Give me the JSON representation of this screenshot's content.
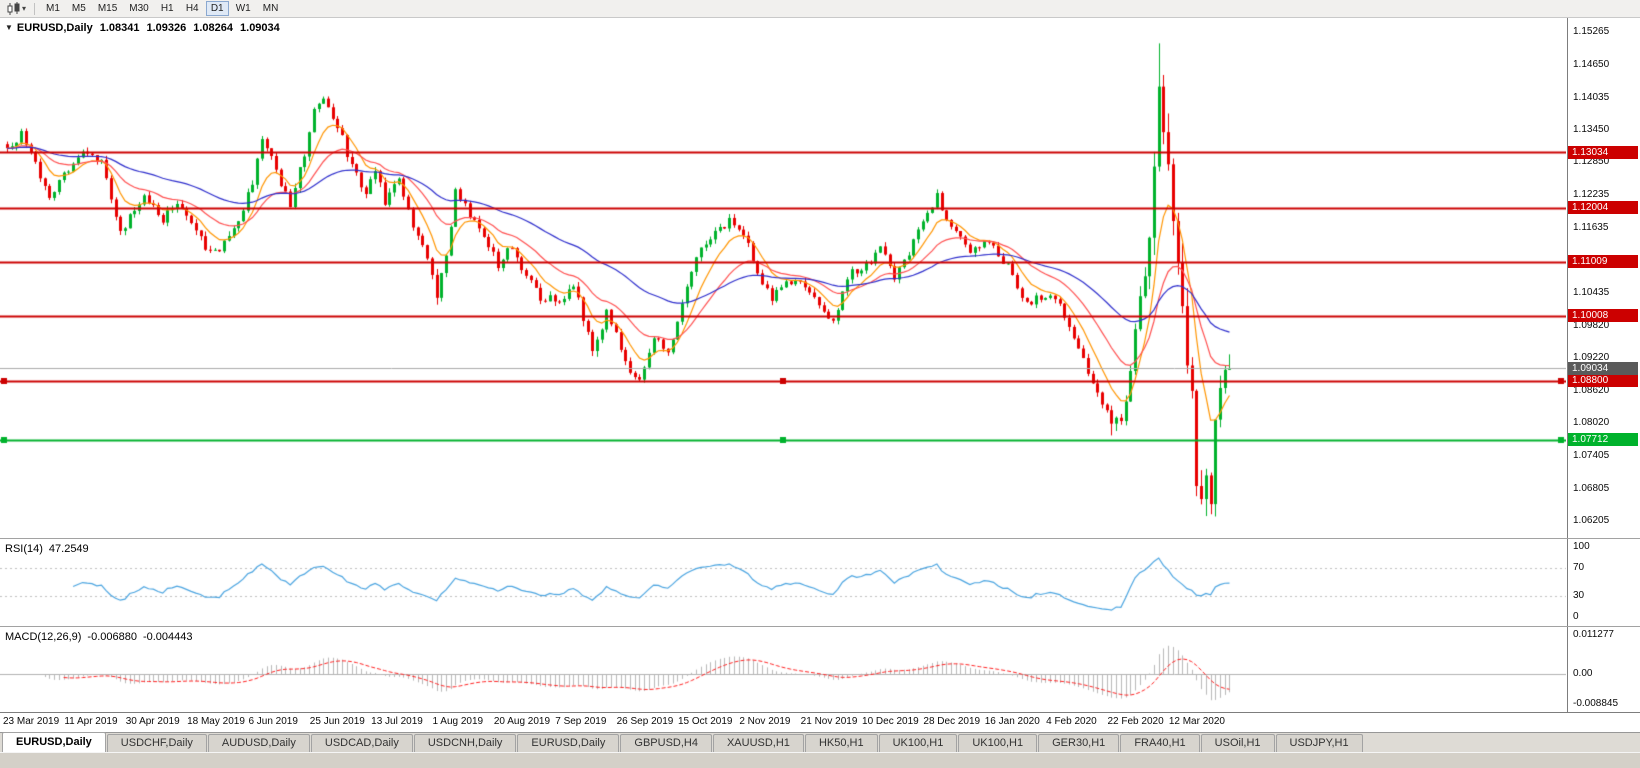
{
  "toolbar": {
    "timeframes": [
      "M1",
      "M5",
      "M15",
      "M30",
      "H1",
      "H4",
      "D1",
      "W1",
      "MN"
    ],
    "active_timeframe": "D1"
  },
  "icons": {
    "chart_type": "candlestick-chart",
    "dropdown": "▾",
    "collapse": "▼"
  },
  "chart": {
    "title": "EURUSD,Daily",
    "ohlc": {
      "open": "1.08341",
      "high": "1.09326",
      "low": "1.08264",
      "close": "1.09034"
    }
  },
  "indicators": {
    "rsi": {
      "name": "RSI(14)",
      "value": "47.2549"
    },
    "macd": {
      "name": "MACD(12,26,9)",
      "value_macd": "-0.006880",
      "value_signal": "-0.004443"
    }
  },
  "tabs": [
    {
      "label": "EURUSD,Daily",
      "active": true
    },
    {
      "label": "USDCHF,Daily",
      "active": false
    },
    {
      "label": "AUDUSD,Daily",
      "active": false
    },
    {
      "label": "USDCAD,Daily",
      "active": false
    },
    {
      "label": "USDCNH,Daily",
      "active": false
    },
    {
      "label": "EURUSD,Daily",
      "active": false
    },
    {
      "label": "GBPUSD,H4",
      "active": false
    },
    {
      "label": "XAUUSD,H1",
      "active": false
    },
    {
      "label": "HK50,H1",
      "active": false
    },
    {
      "label": "UK100,H1",
      "active": false
    },
    {
      "label": "UK100,H1",
      "active": false
    },
    {
      "label": "GER30,H1",
      "active": false
    },
    {
      "label": "FRA40,H1",
      "active": false
    },
    {
      "label": "USOil,H1",
      "active": false
    },
    {
      "label": "USDJPY,H1",
      "active": false
    }
  ],
  "chart_data": {
    "type": "candlestick",
    "symbol": "EURUSD",
    "timeframe": "Daily",
    "n_candles": 260,
    "seed": 7,
    "y_range": [
      1.0589,
      1.1552
    ],
    "x_label_every": 13,
    "colors": {
      "up": "#00b22c",
      "down": "#e80000"
    },
    "price_keypoints": [
      [
        0,
        1.1315
      ],
      [
        3,
        1.1335
      ],
      [
        6,
        1.128
      ],
      [
        9,
        1.1225
      ],
      [
        13,
        1.127
      ],
      [
        17,
        1.1305
      ],
      [
        20,
        1.1285
      ],
      [
        24,
        1.115
      ],
      [
        26,
        1.1185
      ],
      [
        29,
        1.1225
      ],
      [
        33,
        1.118
      ],
      [
        36,
        1.1215
      ],
      [
        39,
        1.1165
      ],
      [
        43,
        1.1115
      ],
      [
        46,
        1.1135
      ],
      [
        49,
        1.1175
      ],
      [
        52,
        1.125
      ],
      [
        54,
        1.133
      ],
      [
        56,
        1.13
      ],
      [
        58,
        1.124
      ],
      [
        60,
        1.1205
      ],
      [
        63,
        1.13
      ],
      [
        65,
        1.139
      ],
      [
        67,
        1.1395
      ],
      [
        70,
        1.135
      ],
      [
        73,
        1.128
      ],
      [
        76,
        1.1225
      ],
      [
        78,
        1.127
      ],
      [
        80,
        1.1215
      ],
      [
        83,
        1.1255
      ],
      [
        86,
        1.116
      ],
      [
        89,
        1.111
      ],
      [
        91,
        1.1045
      ],
      [
        93,
        1.1105
      ],
      [
        95,
        1.123
      ],
      [
        98,
        1.119
      ],
      [
        101,
        1.115
      ],
      [
        104,
        1.1095
      ],
      [
        107,
        1.113
      ],
      [
        110,
        1.1075
      ],
      [
        113,
        1.1035
      ],
      [
        117,
        1.103
      ],
      [
        120,
        1.106
      ],
      [
        124,
        1.093
      ],
      [
        127,
        1.1005
      ],
      [
        130,
        1.0945
      ],
      [
        132,
        1.09
      ],
      [
        134,
        1.0882
      ],
      [
        137,
        1.0965
      ],
      [
        140,
        1.093
      ],
      [
        143,
        1.103
      ],
      [
        146,
        1.1115
      ],
      [
        150,
        1.1155
      ],
      [
        153,
        1.1175
      ],
      [
        156,
        1.1155
      ],
      [
        159,
        1.1075
      ],
      [
        162,
        1.1035
      ],
      [
        165,
        1.1065
      ],
      [
        169,
        1.106
      ],
      [
        172,
        1.1015
      ],
      [
        175,
        1.0985
      ],
      [
        178,
        1.1075
      ],
      [
        182,
        1.1095
      ],
      [
        185,
        1.1125
      ],
      [
        188,
        1.1075
      ],
      [
        191,
        1.112
      ],
      [
        195,
        1.1185
      ],
      [
        197,
        1.1225
      ],
      [
        200,
        1.116
      ],
      [
        204,
        1.112
      ],
      [
        208,
        1.1135
      ],
      [
        212,
        1.109
      ],
      [
        216,
        1.1025
      ],
      [
        221,
        1.1045
      ],
      [
        225,
        1.0985
      ],
      [
        229,
        1.0895
      ],
      [
        232,
        1.0835
      ],
      [
        234,
        1.0795
      ],
      [
        236,
        1.0815
      ],
      [
        238,
        1.0885
      ],
      [
        240,
        1.1055
      ],
      [
        242,
        1.114
      ],
      [
        244,
        1.145
      ],
      [
        245,
        1.135
      ],
      [
        246,
        1.1285
      ],
      [
        247,
        1.1185
      ],
      [
        248,
        1.111
      ],
      [
        249,
        1.0985
      ],
      [
        250,
        1.0925
      ],
      [
        251,
        1.0865
      ],
      [
        252,
        1.0725
      ],
      [
        253,
        1.0665
      ],
      [
        254,
        1.0695
      ],
      [
        255,
        1.0645
      ],
      [
        256,
        1.0785
      ],
      [
        257,
        1.0855
      ],
      [
        258,
        1.0885
      ],
      [
        259,
        1.0903
      ]
    ],
    "vol_keypoints": [
      [
        0,
        0.0016
      ],
      [
        50,
        0.0018
      ],
      [
        88,
        0.0018
      ],
      [
        91,
        0.0026
      ],
      [
        94,
        0.0016
      ],
      [
        120,
        0.0018
      ],
      [
        124,
        0.0024
      ],
      [
        127,
        0.0016
      ],
      [
        230,
        0.0016
      ],
      [
        236,
        0.003
      ],
      [
        240,
        0.0048
      ],
      [
        243,
        0.0068
      ],
      [
        246,
        0.0075
      ],
      [
        250,
        0.008
      ],
      [
        253,
        0.0085
      ],
      [
        256,
        0.006
      ],
      [
        259,
        0.0038
      ]
    ],
    "overrides": {
      "124": {
        "l": 1.0926
      },
      "134": {
        "l": 1.0878
      },
      "234": {
        "l": 1.0779
      },
      "244": {
        "h": 1.1505
      },
      "255": {
        "l": 1.0633
      },
      "259": {
        "c": 1.09034
      }
    },
    "moving_averages": [
      {
        "period": 8,
        "type": "ema",
        "color": "#ff9500"
      },
      {
        "period": 20,
        "type": "ema",
        "color": "#ff5050"
      },
      {
        "period": 50,
        "type": "ema",
        "color": "#2e2ecc"
      }
    ],
    "horizontal_lines": [
      {
        "price": 1.13034,
        "label": "1.13034",
        "color": "#cc0000",
        "width": 2,
        "selected": false
      },
      {
        "price": 1.12004,
        "label": "1.12004",
        "color": "#cc0000",
        "width": 2,
        "selected": false
      },
      {
        "price": 1.11009,
        "label": "1.11009",
        "color": "#cc0000",
        "width": 2,
        "selected": false
      },
      {
        "price": 1.10008,
        "label": "1.10008",
        "color": "#cc0000",
        "width": 2,
        "selected": false
      },
      {
        "price": 1.088,
        "label": "1.08800",
        "color": "#cc0000",
        "width": 2,
        "selected": true
      },
      {
        "price": 1.07712,
        "label": "1.07712",
        "color": "#00b22c",
        "width": 2,
        "selected": true
      }
    ],
    "bid_line": {
      "price": 1.09034,
      "label": "1.09034",
      "line_color": "#aaaaaa",
      "badge_color": "#5a5a5a"
    },
    "price_scale_ticks": [
      {
        "text": "1.15265",
        "price": 1.15265
      },
      {
        "text": "1.14650",
        "price": 1.1465
      },
      {
        "text": "1.14035",
        "price": 1.14035
      },
      {
        "text": "1.13450",
        "price": 1.1345
      },
      {
        "text": "1.12850",
        "price": 1.1285
      },
      {
        "text": "1.12235",
        "price": 1.12235
      },
      {
        "text": "1.11635",
        "price": 1.11635
      },
      {
        "text": "1.10435",
        "price": 1.10435
      },
      {
        "text": "1.09820",
        "price": 1.0982
      },
      {
        "text": "1.09220",
        "price": 1.0922
      },
      {
        "text": "1.08620",
        "price": 1.0862
      },
      {
        "text": "1.08020",
        "price": 1.0802
      },
      {
        "text": "1.07405",
        "price": 1.07405
      },
      {
        "text": "1.06805",
        "price": 1.06805
      },
      {
        "text": "1.06205",
        "price": 1.06205
      }
    ],
    "date_labels": [
      "23 Mar 2019",
      "11 Apr 2019",
      "30 Apr 2019",
      "18 May 2019",
      "6 Jun 2019",
      "25 Jun 2019",
      "13 Jul 2019",
      "1 Aug 2019",
      "20 Aug 2019",
      "7 Sep 2019",
      "26 Sep 2019",
      "15 Oct 2019",
      "2 Nov 2019",
      "21 Nov 2019",
      "10 Dec 2019",
      "28 Dec 2019",
      "16 Jan 2020",
      "4 Feb 2020",
      "22 Feb 2020",
      "12 Mar 2020"
    ],
    "rsi": {
      "period": 14,
      "color": "#4aa4e0",
      "dashed_levels": [
        70,
        30
      ],
      "scale": [
        {
          "text": "100",
          "v": 100
        },
        {
          "text": "70",
          "v": 70
        },
        {
          "text": "30",
          "v": 30
        },
        {
          "text": "0",
          "v": 0
        }
      ]
    },
    "macd": {
      "fast": 12,
      "slow": 26,
      "signal": 9,
      "range": [
        -0.0096,
        0.012
      ],
      "hist_color": "#b8b8b8",
      "zero_color": "#b0b0b0",
      "signal_color": "#ff2020",
      "scale": [
        {
          "text": "0.011277",
          "v": 0.011277
        },
        {
          "text": "0.00",
          "v": 0
        },
        {
          "text": "-0.008845",
          "v": -0.008845
        }
      ]
    }
  }
}
